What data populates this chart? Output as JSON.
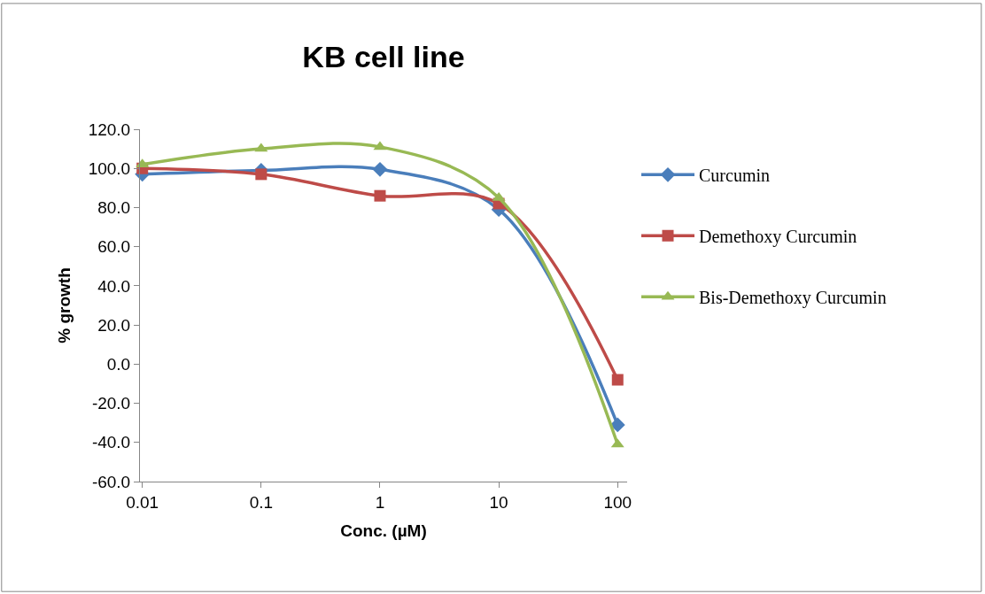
{
  "chart_data": {
    "type": "line",
    "title": "KB cell line",
    "xlabel": "Conc. (µM)",
    "ylabel": "% growth",
    "categories": [
      "0.01",
      "0.1",
      "1",
      "10",
      "100"
    ],
    "series": [
      {
        "name": "Curcumin",
        "color": "#4a7ebb",
        "marker": "diamond",
        "values": [
          97,
          99,
          99.5,
          79,
          -31
        ]
      },
      {
        "name": "Demethoxy Curcumin",
        "color": "#be4b48",
        "marker": "square",
        "values": [
          100,
          97,
          86,
          82,
          -8
        ]
      },
      {
        "name": "Bis-Demethoxy Curcumin",
        "color": "#98b954",
        "marker": "triangle",
        "values": [
          102,
          110,
          111,
          85,
          -41
        ]
      }
    ],
    "ylim": [
      -60,
      120
    ],
    "yticks": [
      {
        "value": -60,
        "label": "-60.0"
      },
      {
        "value": -40,
        "label": "-40.0"
      },
      {
        "value": -20,
        "label": "-20.0"
      },
      {
        "value": 0,
        "label": "0.0"
      },
      {
        "value": 20,
        "label": "20.0"
      },
      {
        "value": 40,
        "label": "40.0"
      },
      {
        "value": 60,
        "label": "60.0"
      },
      {
        "value": 80,
        "label": "80.0"
      },
      {
        "value": 100,
        "label": "100.0"
      },
      {
        "value": 120,
        "label": "120.0"
      }
    ],
    "legend": "right",
    "line_style": "solid"
  }
}
